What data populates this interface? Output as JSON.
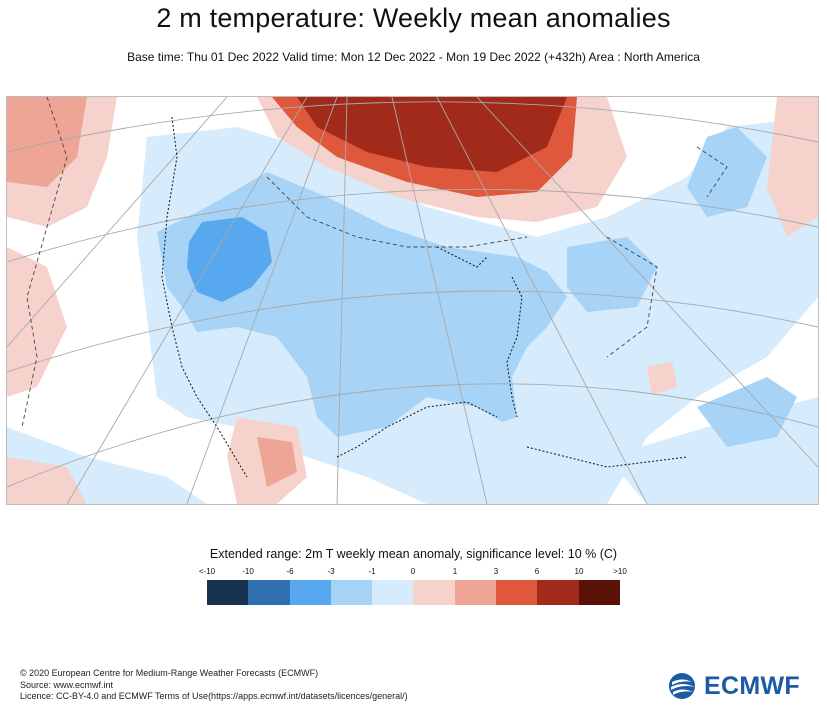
{
  "title": "2 m temperature: Weekly mean anomalies",
  "subtitle": "Base time: Thu 01 Dec 2022 Valid time: Mon 12 Dec 2022 - Mon 19 Dec 2022 (+432h) Area : North America",
  "legend": {
    "title": "Extended range: 2m T weekly mean anomaly, significance level: 10 % (C)",
    "labels": [
      "<-10",
      "-10",
      "-6",
      "-3",
      "-1",
      "0",
      "1",
      "3",
      "6",
      "10",
      ">10"
    ],
    "colors": [
      "#17334f",
      "#2f6fad",
      "#58a8ef",
      "#a6d3f6",
      "#d6ebfb",
      "#f5d3cc",
      "#eea595",
      "#e0583c",
      "#a22a1b",
      "#5a1208"
    ]
  },
  "footer": {
    "copyright": "© 2020 European Centre for Medium-Range Weather Forecasts (ECMWF)",
    "source": "Source: www.ecmwf.int",
    "licence": "Licence: CC-BY-4.0 and ECMWF Terms of Use(https://apps.ecmwf.int/datasets/licences/general/)"
  },
  "logo": {
    "text": "ECMWF",
    "color": "#1c5aa4"
  }
}
